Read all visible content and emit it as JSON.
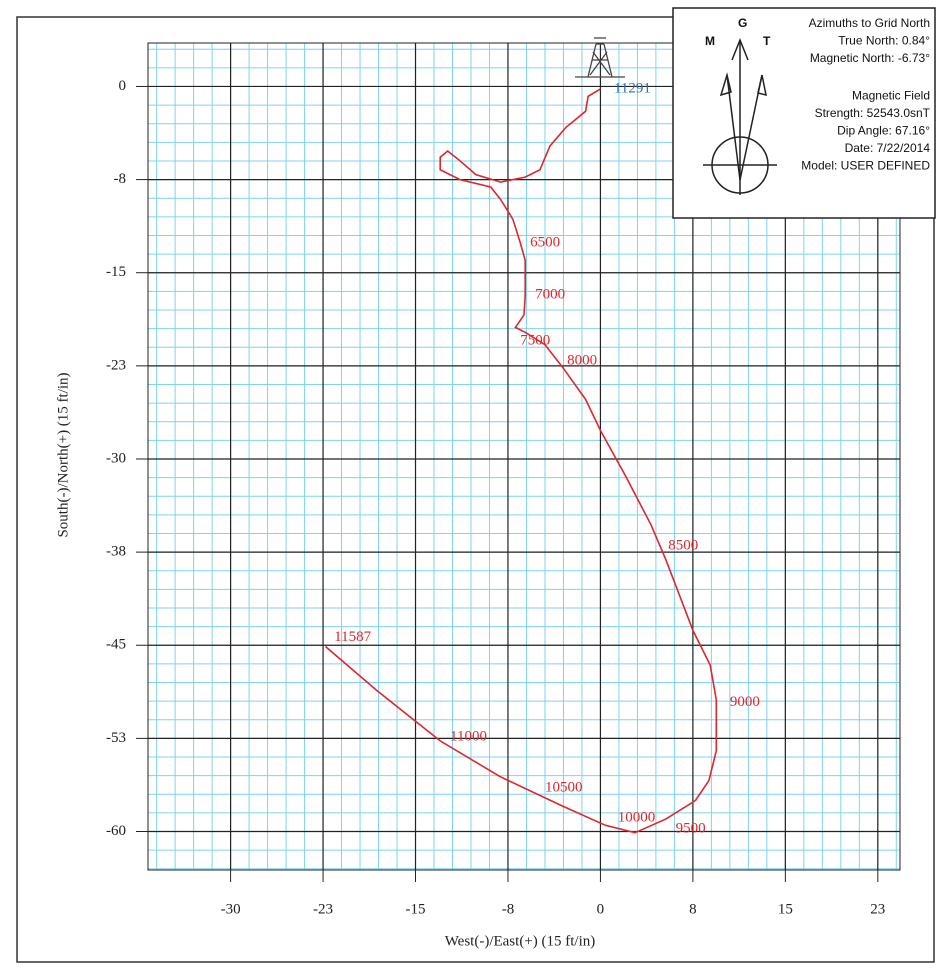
{
  "chart_data": {
    "type": "line",
    "xlabel": "West(-)/East(+) (15 ft/in)",
    "ylabel": "South(-)/North(+) (15 ft/in)",
    "xlim": [
      -36.7,
      24.3
    ],
    "ylim": [
      -63.1,
      3.5
    ],
    "xticks": [
      -30,
      {
        "value": -22.5,
        "label": "-23"
      },
      -15,
      {
        "value": -7.5,
        "label": "-8"
      },
      0,
      {
        "value": 7.5,
        "label": "8"
      },
      15,
      {
        "value": 22.5,
        "label": "23"
      }
    ],
    "yticks": [
      0,
      {
        "value": -7.5,
        "label": "-8"
      },
      -15,
      {
        "value": -22.5,
        "label": "-23"
      },
      -30,
      {
        "value": -37.5,
        "label": "-38"
      },
      -45,
      {
        "value": -52.5,
        "label": "-53"
      },
      -60
    ],
    "grid": true,
    "color": "#e0262b",
    "x": [
      0,
      -1.0,
      -1.2,
      -2.8,
      -4.1,
      -4.9,
      -6.1,
      -8.1,
      -10.1,
      -11.5,
      -12.4,
      -13.0,
      -13.0,
      -11.4,
      -8.9,
      -8.1,
      -7.1,
      -6.5,
      -6.1,
      -6.1,
      -6.2,
      -6.9,
      -6.1,
      -4.5,
      -3.0,
      -1.2,
      0,
      2.0,
      4.1,
      5.3,
      7.5,
      8.9,
      9.4,
      9.4,
      8.8,
      7.7,
      5.3,
      2.8,
      0.4,
      -3.2,
      -8.1,
      -13.0,
      -18.2,
      -22.3
    ],
    "y": [
      -0.2,
      -0.8,
      -2.0,
      -3.3,
      -4.8,
      -6.7,
      -7.3,
      -7.7,
      -7.1,
      -5.9,
      -5.2,
      -5.7,
      -6.7,
      -7.5,
      -8.1,
      -9.1,
      -10.7,
      -12.6,
      -14.0,
      -16.8,
      -18.4,
      -19.4,
      -19.8,
      -20.8,
      -22.7,
      -25.2,
      -27.7,
      -31.3,
      -35.3,
      -38.1,
      -43.8,
      -46.6,
      -49.4,
      -53.5,
      -55.9,
      -57.5,
      -59.0,
      -60.1,
      -59.5,
      -57.9,
      -55.6,
      -52.7,
      -48.6,
      -45.1
    ],
    "annotations": [
      {
        "text": "11291",
        "x": 1.1,
        "y": -0.2,
        "color": "#2a6fb5"
      },
      {
        "text": "6500",
        "x": -5.7,
        "y": -12.6,
        "color": "#e0262b"
      },
      {
        "text": "7000",
        "x": -5.3,
        "y": -16.8,
        "color": "#e0262b"
      },
      {
        "text": "7500",
        "x": -6.5,
        "y": -20.5,
        "color": "#e0262b"
      },
      {
        "text": "8000",
        "x": -2.7,
        "y": -22.1,
        "color": "#e0262b"
      },
      {
        "text": "8500",
        "x": 5.5,
        "y": -37.0,
        "color": "#e0262b"
      },
      {
        "text": "9000",
        "x": 10.5,
        "y": -49.6,
        "color": "#e0262b"
      },
      {
        "text": "9500",
        "x": 6.1,
        "y": -59.8,
        "color": "#e0262b"
      },
      {
        "text": "10000",
        "x": 1.4,
        "y": -58.9,
        "color": "#e0262b"
      },
      {
        "text": "10500",
        "x": -4.5,
        "y": -56.5,
        "color": "#e0262b"
      },
      {
        "text": "11000",
        "x": -12.2,
        "y": -52.4,
        "color": "#e0262b"
      },
      {
        "text": "11587",
        "x": -21.6,
        "y": -44.4,
        "color": "#e0262b"
      }
    ],
    "compass": {
      "m": "M",
      "g": "G",
      "t": "T",
      "lines": [
        "Azimuths to Grid North",
        "True North: 0.84°",
        "Magnetic North: -6.73°",
        "Magnetic Field",
        "Strength: 52543.0snT",
        "Dip Angle: 67.16°",
        "Date: 7/22/2014",
        "Model: USER DEFINED"
      ]
    }
  }
}
